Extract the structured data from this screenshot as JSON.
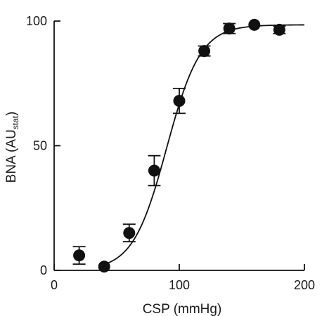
{
  "chart_data": {
    "type": "scatter",
    "xlabel": "CSP (mmHg)",
    "ylabel": {
      "main": "BNA (AU",
      "subscript": "stat",
      "close": ")"
    },
    "xlim": [
      0,
      200
    ],
    "ylim": [
      0,
      100
    ],
    "x_ticks": [
      0,
      100,
      200
    ],
    "x_tick_labels": [
      "0",
      "100",
      "200"
    ],
    "y_ticks": [
      0,
      50,
      100
    ],
    "y_tick_labels": [
      "0",
      "50",
      "100"
    ],
    "grid": false,
    "points": [
      {
        "x": 20,
        "y": 6,
        "err": 3.5
      },
      {
        "x": 40,
        "y": 1.5,
        "err": 0
      },
      {
        "x": 60,
        "y": 15,
        "err": 3.5
      },
      {
        "x": 80,
        "y": 40,
        "err": 6
      },
      {
        "x": 100,
        "y": 68,
        "err": 5
      },
      {
        "x": 120,
        "y": 88,
        "err": 2
      },
      {
        "x": 140,
        "y": 97,
        "err": 2
      },
      {
        "x": 160,
        "y": 98.5,
        "err": 0
      },
      {
        "x": 180,
        "y": 96.5,
        "err": 1.5
      }
    ],
    "fit_curve": {
      "type": "sigmoid",
      "min": 0,
      "max": 98.5,
      "x50": 90,
      "slope": 13.5,
      "x_range": [
        40,
        200
      ]
    },
    "colors": {
      "ink": "#111111"
    }
  }
}
